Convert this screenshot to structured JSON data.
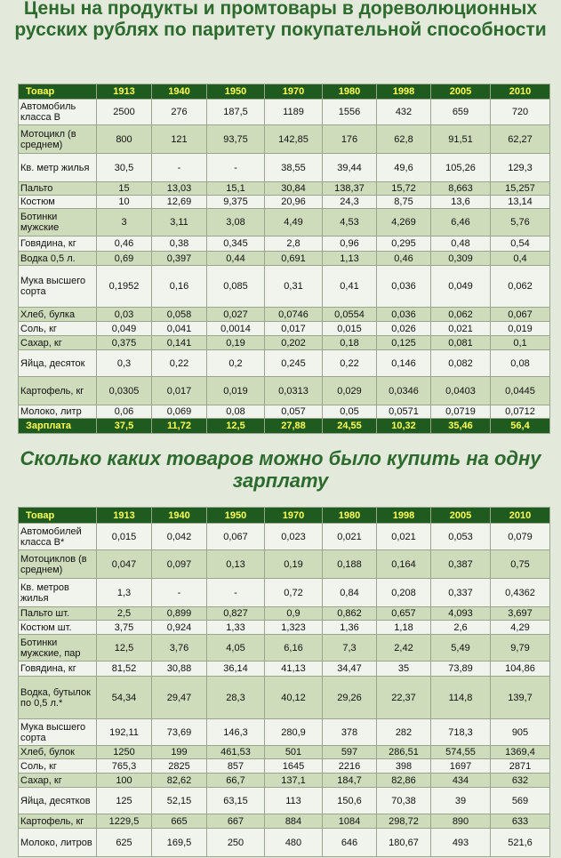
{
  "title1": "Цены на продукты и промтовары в дореволюционных русских рублях по паритету покупательной способности",
  "table1": {
    "header": [
      "Товар",
      "1913",
      "1940",
      "1950",
      "1970",
      "1980",
      "1998",
      "2005",
      "2010"
    ],
    "rows": [
      [
        "Автомобиль класса В",
        "2500",
        "276",
        "187,5",
        "1189",
        "1556",
        "432",
        "659",
        "720"
      ],
      [
        "Мотоцикл (в среднем)",
        "800",
        "121",
        "93,75",
        "142,85",
        "176",
        "62,8",
        "91,51",
        "62,27"
      ],
      [
        "Кв. метр жилья",
        "30,5",
        "-",
        "-",
        "38,55",
        "39,44",
        "49,6",
        "105,26",
        "129,3"
      ],
      [
        "Пальто",
        "15",
        "13,03",
        "15,1",
        "30,84",
        "138,37",
        "15,72",
        "8,663",
        "15,257"
      ],
      [
        "Костюм",
        "10",
        "12,69",
        "9,375",
        "20,96",
        "24,3",
        "8,75",
        "13,6",
        "13,14"
      ],
      [
        "Ботинки мужские",
        "3",
        "3,11",
        "3,08",
        "4,49",
        "4,53",
        "4,269",
        "6,46",
        "5,76"
      ],
      [
        "Говядина, кг",
        "0,46",
        "0,38",
        "0,345",
        "2,8",
        "0,96",
        "0,295",
        "0,48",
        "0,54"
      ],
      [
        "Водка 0,5 л.",
        "0,69",
        "0,397",
        "0,44",
        "0,691",
        "1,13",
        "0,46",
        "0,309",
        "0,4"
      ],
      [
        "Мука высшего сорта",
        "0,1952",
        "0,16",
        "0,085",
        "0,31",
        "0,41",
        "0,036",
        "0,049",
        "0,062"
      ],
      [
        "Хлеб, булка",
        "0,03",
        "0,058",
        "0,027",
        "0,0746",
        "0,0554",
        "0,036",
        "0,062",
        "0,067"
      ],
      [
        "Соль, кг",
        "0,049",
        "0,041",
        "0,0014",
        "0,017",
        "0,015",
        "0,026",
        "0,021",
        "0,019"
      ],
      [
        "Сахар, кг",
        "0,375",
        "0,141",
        "0,19",
        "0,202",
        "0,18",
        "0,125",
        "0,081",
        "0,1"
      ],
      [
        "Яйца, десяток",
        "0,3",
        "0,22",
        "0,2",
        "0,245",
        "0,22",
        "0,146",
        "0,082",
        "0,08"
      ],
      [
        "Картофель, кг",
        "0,0305",
        "0,017",
        "0,019",
        "0,0313",
        "0,029",
        "0,0346",
        "0,0403",
        "0,0445"
      ],
      [
        "Молоко, литр",
        "0,06",
        "0,069",
        "0,08",
        "0,057",
        "0,05",
        "0,0571",
        "0,0719",
        "0,0712"
      ]
    ],
    "footer": [
      "Зарплата",
      "37,5",
      "11,72",
      "12,5",
      "27,88",
      "24,55",
      "10,32",
      "35,46",
      "56,4"
    ]
  },
  "title2": "Сколько каких товаров можно было купить на одну зарплату",
  "table2": {
    "header": [
      "Товар",
      "1913",
      "1940",
      "1950",
      "1970",
      "1980",
      "1998",
      "2005",
      "2010"
    ],
    "rows": [
      [
        "Автомобилей класса В*",
        "0,015",
        "0,042",
        "0,067",
        "0,023",
        "0,021",
        "0,021",
        "0,053",
        "0,079"
      ],
      [
        "Мотоциклов (в среднем)",
        "0,047",
        "0,097",
        "0,13",
        "0,19",
        "0,188",
        "0,164",
        "0,387",
        "0,75"
      ],
      [
        "Кв. метров жилья",
        "1,3",
        "-",
        "-",
        "0,72",
        "0,84",
        "0,208",
        "0,337",
        "0,4362"
      ],
      [
        "Пальто шт.",
        "2,5",
        "0,899",
        "0,827",
        "0,9",
        "0,862",
        "0,657",
        "4,093",
        "3,697"
      ],
      [
        "Костюм шт.",
        "3,75",
        "0,924",
        "1,33",
        "1,323",
        "1,36",
        "1,18",
        "2,6",
        "4,29"
      ],
      [
        "Ботинки мужские, пар",
        "12,5",
        "3,76",
        "4,05",
        "6,16",
        "7,3",
        "2,42",
        "5,49",
        "9,79"
      ],
      [
        "Говядина, кг",
        "81,52",
        "30,88",
        "36,14",
        "41,13",
        "34,47",
        "35",
        "73,89",
        "104,86"
      ],
      [
        "Водка, бутылок по 0,5 л.*",
        "54,34",
        "29,47",
        "28,3",
        "40,12",
        "29,26",
        "22,37",
        "114,8",
        "139,7"
      ],
      [
        "Мука высшего сорта",
        "192,11",
        "73,69",
        "146,3",
        "280,9",
        "378",
        "282",
        "718,3",
        "905"
      ],
      [
        "Хлеб, булок",
        "1250",
        "199",
        "461,53",
        "501",
        "597",
        "286,51",
        "574,55",
        "1369,4"
      ],
      [
        "Соль, кг",
        "765,3",
        "2825",
        "857",
        "1645",
        "2216",
        "398",
        "1697",
        "2871"
      ],
      [
        "Сахар, кг",
        "100",
        "82,62",
        "66,7",
        "137,1",
        "184,7",
        "82,86",
        "434",
        "632"
      ],
      [
        "Яйца, десятков",
        "125",
        "52,15",
        "63,15",
        "113",
        "150,6",
        "70,38",
        "39",
        "569"
      ],
      [
        "Картофель, кг",
        "1229,5",
        "665",
        "667",
        "884",
        "1084",
        "298,72",
        "890",
        "633"
      ],
      [
        "Молоко, литров",
        "625",
        "169,5",
        "250",
        "480",
        "646",
        "180,67",
        "493",
        "521,6"
      ]
    ]
  }
}
